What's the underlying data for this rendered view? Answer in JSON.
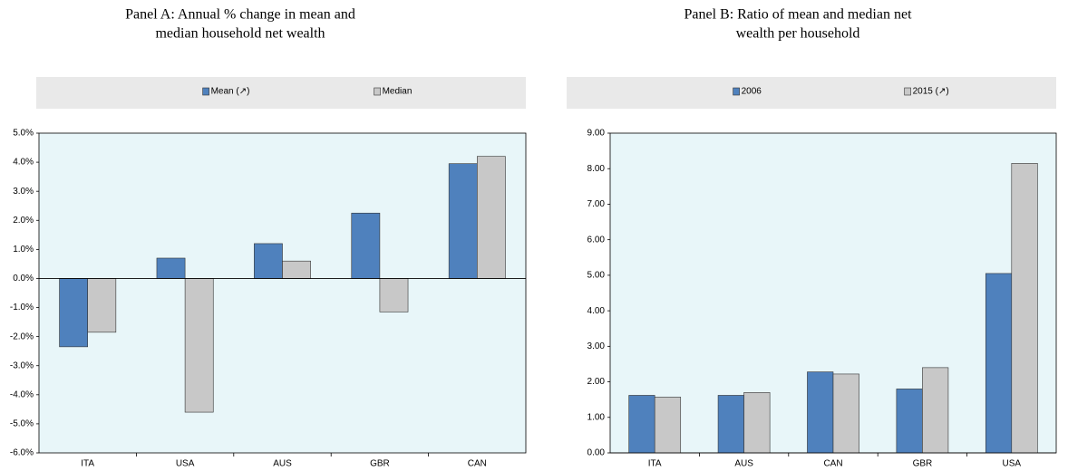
{
  "chart_data": [
    {
      "type": "bar",
      "title": [
        "Panel A: Annual % change in mean and",
        "median household net wealth"
      ],
      "categories": [
        "ITA",
        "USA",
        "AUS",
        "GBR",
        "CAN"
      ],
      "series": [
        {
          "name": "Mean (↗)",
          "color": "#4f81bd",
          "values": [
            -2.35,
            0.7,
            1.2,
            2.25,
            3.95
          ]
        },
        {
          "name": "Median",
          "color": "#c8c8c8",
          "values": [
            -1.85,
            -4.6,
            0.6,
            -1.15,
            4.2
          ]
        }
      ],
      "ylim": [
        -6,
        5
      ],
      "yticks": [
        {
          "value": -6,
          "label": "-6.0%"
        },
        {
          "value": -5,
          "label": "-5.0%"
        },
        {
          "value": -4,
          "label": "-4.0%"
        },
        {
          "value": -3,
          "label": "-3.0%"
        },
        {
          "value": -2,
          "label": "-2.0%"
        },
        {
          "value": -1,
          "label": "-1.0%"
        },
        {
          "value": 0,
          "label": "0.0%"
        },
        {
          "value": 1,
          "label": "1.0%"
        },
        {
          "value": 2,
          "label": "2.0%"
        },
        {
          "value": 3,
          "label": "3.0%"
        },
        {
          "value": 4,
          "label": "4.0%"
        },
        {
          "value": 5,
          "label": "5.0%"
        }
      ],
      "grid": false
    },
    {
      "type": "bar",
      "title": [
        "Panel B: Ratio of mean and median net",
        "wealth per household"
      ],
      "categories": [
        "ITA",
        "AUS",
        "CAN",
        "GBR",
        "USA"
      ],
      "series": [
        {
          "name": "2006",
          "color": "#4f81bd",
          "values": [
            1.62,
            1.62,
            2.28,
            1.8,
            5.05
          ]
        },
        {
          "name": "2015 (↗)",
          "color": "#c8c8c8",
          "values": [
            1.57,
            1.7,
            2.22,
            2.4,
            8.15
          ]
        }
      ],
      "ylim": [
        0,
        9
      ],
      "yticks": [
        {
          "value": 0,
          "label": "0.00"
        },
        {
          "value": 1,
          "label": "1.00"
        },
        {
          "value": 2,
          "label": "2.00"
        },
        {
          "value": 3,
          "label": "3.00"
        },
        {
          "value": 4,
          "label": "4.00"
        },
        {
          "value": 5,
          "label": "5.00"
        },
        {
          "value": 6,
          "label": "6.00"
        },
        {
          "value": 7,
          "label": "7.00"
        },
        {
          "value": 8,
          "label": "8.00"
        },
        {
          "value": 9,
          "label": "9.00"
        }
      ],
      "grid": false
    }
  ]
}
